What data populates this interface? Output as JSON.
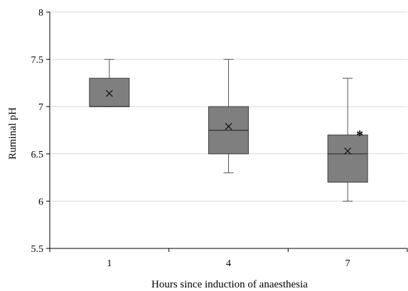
{
  "chart_data": {
    "type": "box",
    "title": "",
    "xlabel": "Hours since induction of anaesthesia",
    "ylabel": "Ruminal pH",
    "ylim": [
      5.5,
      8
    ],
    "yticks": [
      "5.5",
      "6",
      "6.5",
      "7",
      "7.5",
      "8"
    ],
    "grid": true,
    "categories": [
      "1",
      "4",
      "7"
    ],
    "boxes": [
      {
        "category": "1",
        "min": 7.0,
        "q1": 7.0,
        "median": 7.0,
        "q3": 7.3,
        "max": 7.5,
        "mean": 7.14,
        "marker": ""
      },
      {
        "category": "4",
        "min": 6.3,
        "q1": 6.5,
        "median": 6.75,
        "q3": 7.0,
        "max": 7.5,
        "mean": 6.79,
        "marker": ""
      },
      {
        "category": "7",
        "min": 6.0,
        "q1": 6.2,
        "median": 6.5,
        "q3": 6.7,
        "max": 7.3,
        "mean": 6.53,
        "marker": "*"
      }
    ],
    "box_color": "#7f7f7f",
    "grid_color": "#d9d9d9"
  }
}
